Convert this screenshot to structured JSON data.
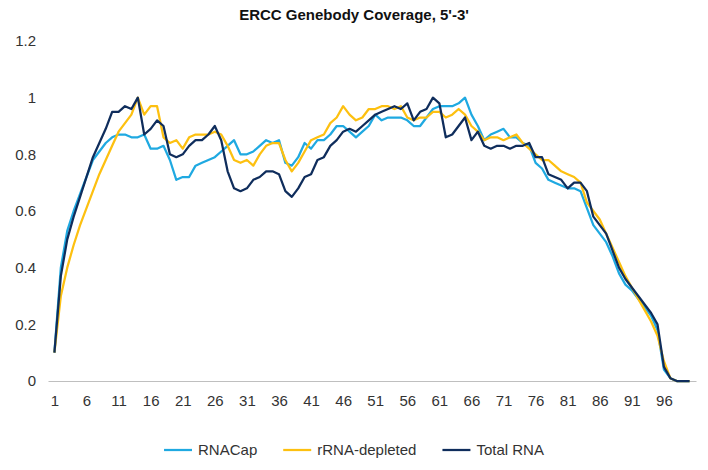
{
  "chart_data": {
    "type": "line",
    "title": "ERCC Genebody Coverage, 5'-3'",
    "x": [
      1,
      2,
      3,
      4,
      5,
      6,
      7,
      8,
      9,
      10,
      11,
      12,
      13,
      14,
      15,
      16,
      17,
      18,
      19,
      20,
      21,
      22,
      23,
      24,
      25,
      26,
      27,
      28,
      29,
      30,
      31,
      32,
      33,
      34,
      35,
      36,
      37,
      38,
      39,
      40,
      41,
      42,
      43,
      44,
      45,
      46,
      47,
      48,
      49,
      50,
      51,
      52,
      53,
      54,
      55,
      56,
      57,
      58,
      59,
      60,
      61,
      62,
      63,
      64,
      65,
      66,
      67,
      68,
      69,
      70,
      71,
      72,
      73,
      74,
      75,
      76,
      77,
      78,
      79,
      80,
      81,
      82,
      83,
      84,
      85,
      86,
      87,
      88,
      89,
      90,
      91,
      92,
      93,
      94,
      95,
      96,
      97,
      98,
      99,
      100
    ],
    "xlim": [
      0,
      101
    ],
    "xticks": [
      1,
      6,
      11,
      16,
      21,
      26,
      31,
      36,
      41,
      46,
      51,
      56,
      61,
      66,
      71,
      76,
      81,
      86,
      91,
      96
    ],
    "ylim": [
      0,
      1.2
    ],
    "yticks": [
      0,
      0.2,
      0.4,
      0.6,
      0.8,
      1,
      1.2
    ],
    "grid": false,
    "legend": "bottom",
    "series": [
      {
        "name": "RNACap",
        "color": "#1fa9e1",
        "values": [
          0.1,
          0.4,
          0.53,
          0.6,
          0.66,
          0.72,
          0.78,
          0.81,
          0.84,
          0.86,
          0.87,
          0.87,
          0.86,
          0.86,
          0.87,
          0.82,
          0.82,
          0.83,
          0.78,
          0.71,
          0.72,
          0.72,
          0.76,
          0.77,
          0.78,
          0.79,
          0.81,
          0.83,
          0.85,
          0.8,
          0.8,
          0.81,
          0.83,
          0.85,
          0.84,
          0.85,
          0.77,
          0.76,
          0.79,
          0.84,
          0.82,
          0.85,
          0.85,
          0.87,
          0.9,
          0.9,
          0.88,
          0.86,
          0.88,
          0.9,
          0.94,
          0.92,
          0.93,
          0.93,
          0.93,
          0.92,
          0.9,
          0.9,
          0.93,
          0.96,
          0.97,
          0.97,
          0.97,
          0.98,
          1.0,
          0.94,
          0.9,
          0.85,
          0.87,
          0.88,
          0.89,
          0.86,
          0.86,
          0.84,
          0.83,
          0.77,
          0.75,
          0.71,
          0.7,
          0.69,
          0.68,
          0.68,
          0.67,
          0.61,
          0.55,
          0.52,
          0.49,
          0.44,
          0.38,
          0.34,
          0.32,
          0.29,
          0.26,
          0.23,
          0.18,
          0.04,
          0.01,
          0.0,
          0.0,
          0.0
        ]
      },
      {
        "name": "rRNA-depleted",
        "color": "#fdc010",
        "values": [
          0.1,
          0.3,
          0.4,
          0.48,
          0.55,
          0.61,
          0.67,
          0.73,
          0.78,
          0.83,
          0.88,
          0.91,
          0.94,
          1.0,
          0.94,
          0.97,
          0.97,
          0.86,
          0.84,
          0.85,
          0.82,
          0.86,
          0.87,
          0.87,
          0.87,
          0.88,
          0.87,
          0.83,
          0.78,
          0.77,
          0.78,
          0.76,
          0.8,
          0.83,
          0.84,
          0.84,
          0.78,
          0.74,
          0.77,
          0.81,
          0.85,
          0.86,
          0.87,
          0.91,
          0.93,
          0.97,
          0.94,
          0.92,
          0.93,
          0.96,
          0.96,
          0.97,
          0.97,
          0.96,
          0.97,
          0.93,
          0.92,
          0.93,
          0.93,
          0.95,
          0.95,
          0.93,
          0.94,
          0.96,
          0.94,
          0.9,
          0.88,
          0.85,
          0.86,
          0.86,
          0.85,
          0.86,
          0.87,
          0.84,
          0.82,
          0.8,
          0.78,
          0.78,
          0.76,
          0.74,
          0.73,
          0.72,
          0.7,
          0.63,
          0.6,
          0.57,
          0.52,
          0.47,
          0.42,
          0.37,
          0.33,
          0.29,
          0.25,
          0.21,
          0.16,
          0.07,
          0.01,
          0.0,
          0.0,
          0.0
        ]
      },
      {
        "name": "Total RNA",
        "color": "#0f2d5c",
        "values": [
          0.1,
          0.37,
          0.5,
          0.58,
          0.65,
          0.72,
          0.79,
          0.84,
          0.89,
          0.95,
          0.95,
          0.97,
          0.96,
          1.0,
          0.87,
          0.89,
          0.92,
          0.9,
          0.8,
          0.79,
          0.8,
          0.83,
          0.85,
          0.85,
          0.87,
          0.9,
          0.85,
          0.74,
          0.68,
          0.67,
          0.68,
          0.71,
          0.72,
          0.74,
          0.74,
          0.73,
          0.67,
          0.65,
          0.68,
          0.72,
          0.73,
          0.78,
          0.79,
          0.83,
          0.85,
          0.88,
          0.89,
          0.88,
          0.9,
          0.92,
          0.94,
          0.95,
          0.96,
          0.97,
          0.96,
          0.98,
          0.92,
          0.95,
          0.96,
          1.0,
          0.98,
          0.86,
          0.87,
          0.9,
          0.93,
          0.85,
          0.88,
          0.83,
          0.82,
          0.83,
          0.83,
          0.82,
          0.83,
          0.83,
          0.84,
          0.79,
          0.79,
          0.73,
          0.72,
          0.71,
          0.68,
          0.7,
          0.7,
          0.67,
          0.58,
          0.55,
          0.52,
          0.46,
          0.4,
          0.36,
          0.33,
          0.3,
          0.27,
          0.24,
          0.2,
          0.05,
          0.01,
          0.0,
          0.0,
          0.0
        ]
      }
    ]
  }
}
